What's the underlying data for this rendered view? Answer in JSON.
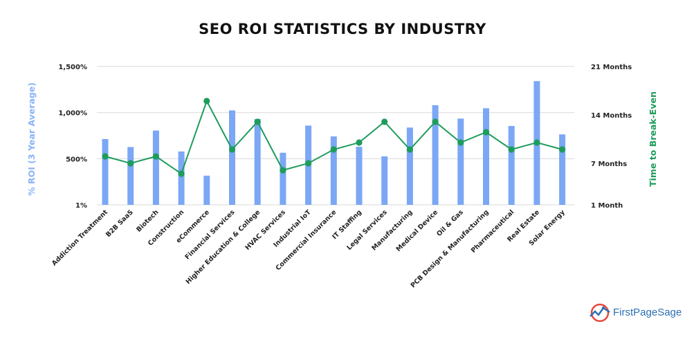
{
  "colors": {
    "bar": "#7ba7f5",
    "line": "#1e9c5b",
    "grid": "#d9d9d9",
    "logo": "#2d6fb2",
    "logo_accent": "#e8473f"
  },
  "brand": {
    "name": "FirstPageSage",
    "icon": "first-page-sage-logo-icon"
  },
  "chart_data": {
    "type": "bar",
    "title": "SEO ROI STATISTICS BY INDUSTRY",
    "categories": [
      "Addiction Treatment",
      "B2B SaaS",
      "Biotech",
      "Construction",
      "eCommerce",
      "Financial Services",
      "Higher Education & College",
      "HVAC Services",
      "Industrial IoT",
      "Commercial Insurance",
      "IT Staffing",
      "Legal Services",
      "Manufacturing",
      "Medical Device",
      "Oil & Gas",
      "PCB Design & Manufacturing",
      "Pharmaceutical",
      "Real Estate",
      "Solar Energy"
    ],
    "series": [
      {
        "name": "% ROI (3 Year Average)",
        "type": "bar",
        "axis": "left",
        "values": [
          713,
          627,
          806,
          579,
          317,
          1024,
          930,
          565,
          859,
          742,
          630,
          526,
          838,
          1080,
          935,
          1047,
          855,
          1341,
          764
        ]
      },
      {
        "name": "Time to Break-Even",
        "type": "line",
        "axis": "right",
        "values": [
          8,
          7,
          8,
          5.5,
          16,
          9,
          13,
          6,
          7,
          9,
          10,
          13,
          9,
          13,
          10,
          11.5,
          9,
          10,
          9
        ]
      }
    ],
    "ylabel": "% ROI (3 Year Average)",
    "y2label": "Time to Break-Even",
    "y_ticks": [
      {
        "value": 1,
        "label": "1%"
      },
      {
        "value": 500,
        "label": "500%"
      },
      {
        "value": 1000,
        "label": "1,000%"
      },
      {
        "value": 1500,
        "label": "1,500%"
      }
    ],
    "y2_ticks": [
      {
        "value": 1,
        "label": "1 Month"
      },
      {
        "value": 7,
        "label": "7 Months"
      },
      {
        "value": 14,
        "label": "14 Months"
      },
      {
        "value": 21,
        "label": "21 Months"
      }
    ],
    "ylim": [
      1,
      1500
    ],
    "y2lim": [
      1,
      21
    ],
    "grid": true
  }
}
